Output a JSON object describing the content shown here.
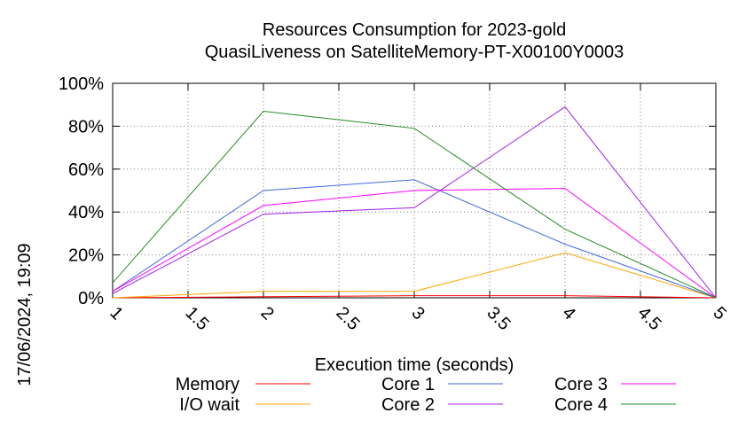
{
  "chart_data": {
    "type": "line",
    "title": "Resources Consumption for 2023-gold",
    "subtitle": "QuasiLiveness on SatelliteMemory-PT-X00100Y0003",
    "xlabel": "Execution time (seconds)",
    "ylabel": "",
    "side_label": "17/06/2024, 19:09",
    "xlim": [
      1,
      5
    ],
    "ylim": [
      0,
      100
    ],
    "x_ticks": [
      "1",
      "1.5",
      "2",
      "2.5",
      "3",
      "3.5",
      "4",
      "4.5",
      "5"
    ],
    "x_tick_values": [
      1,
      1.5,
      2,
      2.5,
      3,
      3.5,
      4,
      4.5,
      5
    ],
    "y_ticks": [
      "0%",
      "20%",
      "40%",
      "60%",
      "80%",
      "100%"
    ],
    "y_tick_values": [
      0,
      20,
      40,
      60,
      80,
      100
    ],
    "grid": true,
    "legend_position": "bottom",
    "x": [
      1,
      2,
      3,
      4,
      5
    ],
    "series": [
      {
        "name": "Memory",
        "color": "#ff0000",
        "values": [
          0,
          0.5,
          1,
          1,
          0
        ]
      },
      {
        "name": "I/O wait",
        "color": "#ffa500",
        "values": [
          0,
          3,
          3,
          21,
          0
        ]
      },
      {
        "name": "Core 1",
        "color": "#4169e1",
        "values": [
          3,
          50,
          55,
          25,
          0
        ]
      },
      {
        "name": "Core 2",
        "color": "#a020f0",
        "values": [
          2,
          39,
          42,
          89,
          0
        ]
      },
      {
        "name": "Core 3",
        "color": "#ff00ff",
        "values": [
          3,
          43,
          50,
          51,
          0
        ]
      },
      {
        "name": "Core 4",
        "color": "#228b22",
        "values": [
          7,
          87,
          79,
          32,
          0
        ]
      }
    ]
  }
}
